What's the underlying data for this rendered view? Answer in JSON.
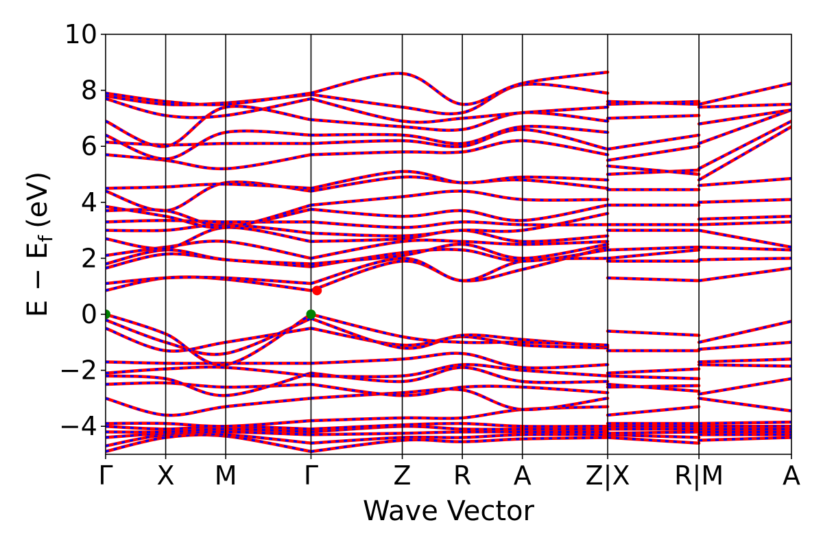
{
  "chart_data": {
    "type": "line",
    "xlabel": "Wave Vector",
    "ylabel_main": "E − E",
    "ylabel_sub": "f",
    "ylabel_unit": "(eV)",
    "ylim": [
      -5,
      10
    ],
    "yticks": [
      -4,
      -2,
      0,
      2,
      4,
      6,
      8,
      10
    ],
    "ytick_labels": [
      "−4",
      "−2",
      "0",
      "2",
      "4",
      "6",
      "8",
      "10"
    ],
    "kpath_labels": [
      "Γ",
      "X",
      "M",
      "Γ",
      "Z",
      "R",
      "A",
      "Z|X",
      "R|M",
      "A"
    ],
    "kpath_positions": [
      0,
      0.5,
      1,
      1.71,
      2.47,
      2.97,
      3.47,
      4.18,
      4.94,
      5.71
    ],
    "grid": false,
    "legend": "none",
    "colors": {
      "band_primary": "#ff0000",
      "band_secondary": "#0000ff",
      "vbm_marker": "#008000",
      "cbm_marker": "#ff0000",
      "kpath_line": "#000000"
    },
    "markers": [
      {
        "name": "vbm",
        "x": 0.0,
        "y": 0.0,
        "color": "#008000"
      },
      {
        "name": "vbm",
        "x": 1.71,
        "y": 0.0,
        "color": "#008000"
      },
      {
        "name": "cbm",
        "x": 1.76,
        "y": 0.85,
        "color": "#ff0000"
      }
    ],
    "segments": [
      {
        "x": [
          0,
          0.5,
          1,
          1.71
        ],
        "bands": [
          [
            -4.9,
            -4.4,
            -4.35,
            -4.9
          ],
          [
            -4.7,
            -4.3,
            -4.3,
            -4.6
          ],
          [
            -4.4,
            -4.25,
            -4.2,
            -4.3
          ],
          [
            -4.2,
            -4.2,
            -4.1,
            -4.2
          ],
          [
            -4.0,
            -4.1,
            -4.0,
            -4.1
          ],
          [
            -3.9,
            -3.9,
            -4.0,
            -3.8
          ],
          [
            -3.0,
            -3.6,
            -3.3,
            -3.0
          ],
          [
            -2.5,
            -2.45,
            -2.6,
            -2.5
          ],
          [
            -2.2,
            -2.3,
            -2.9,
            -2.1
          ],
          [
            -2.1,
            -1.95,
            -1.9,
            -2.2
          ],
          [
            -1.7,
            -1.75,
            -1.75,
            -1.75
          ],
          [
            -0.5,
            -1.3,
            -1.0,
            -0.5
          ],
          [
            -0.2,
            -1.0,
            -1.4,
            -0.15
          ],
          [
            0.0,
            -0.7,
            -1.8,
            0.0
          ],
          [
            0.85,
            1.3,
            1.25,
            0.85
          ],
          [
            1.1,
            1.3,
            1.3,
            1.1
          ],
          [
            1.65,
            2.15,
            1.95,
            1.7
          ],
          [
            1.8,
            2.3,
            1.95,
            1.8
          ],
          [
            2.1,
            2.4,
            2.6,
            2.0
          ],
          [
            2.7,
            2.35,
            3.1,
            2.6
          ],
          [
            3.0,
            3.0,
            3.2,
            2.9
          ],
          [
            3.3,
            3.35,
            3.3,
            3.3
          ],
          [
            3.7,
            3.7,
            3.15,
            3.75
          ],
          [
            3.85,
            3.5,
            3.1,
            3.9
          ],
          [
            4.4,
            3.7,
            4.7,
            4.4
          ],
          [
            4.5,
            4.55,
            4.65,
            4.5
          ],
          [
            5.7,
            5.5,
            5.2,
            5.7
          ],
          [
            6.15,
            6.05,
            6.1,
            6.1
          ],
          [
            6.4,
            5.55,
            6.5,
            6.4
          ],
          [
            6.9,
            6.0,
            7.4,
            6.95
          ],
          [
            7.7,
            7.1,
            7.1,
            7.7
          ],
          [
            7.8,
            7.5,
            7.55,
            7.85
          ],
          [
            7.9,
            7.6,
            7.5,
            7.9
          ]
        ]
      },
      {
        "x": [
          1.71,
          2.47,
          2.97,
          3.47,
          4.18
        ],
        "bands": [
          [
            -4.9,
            -4.5,
            -4.55,
            -4.45,
            -4.4
          ],
          [
            -4.6,
            -4.4,
            -4.4,
            -4.3,
            -4.3
          ],
          [
            -4.3,
            -4.25,
            -4.2,
            -4.2,
            -4.2
          ],
          [
            -4.2,
            -4.0,
            -4.1,
            -4.1,
            -4.1
          ],
          [
            -4.1,
            -3.95,
            -3.9,
            -4.0,
            -4.0
          ],
          [
            -3.8,
            -3.7,
            -3.7,
            -3.4,
            -3.3
          ],
          [
            -3.0,
            -2.8,
            -2.7,
            -3.4,
            -3.0
          ],
          [
            -2.5,
            -2.9,
            -2.6,
            -2.6,
            -2.8
          ],
          [
            -2.1,
            -2.4,
            -1.9,
            -2.4,
            -2.4
          ],
          [
            -2.2,
            -2.2,
            -1.8,
            -2.0,
            -2.2
          ],
          [
            -1.75,
            -1.6,
            -1.4,
            -1.9,
            -1.8
          ],
          [
            -0.5,
            -1.1,
            -0.8,
            -1.1,
            -1.2
          ],
          [
            -0.15,
            -1.2,
            -0.75,
            -0.9,
            -1.15
          ],
          [
            0.0,
            -0.8,
            -1.0,
            -1.0,
            -1.1
          ],
          [
            0.85,
            1.9,
            1.2,
            1.6,
            2.4
          ],
          [
            1.1,
            2.0,
            1.2,
            1.9,
            2.0
          ],
          [
            1.7,
            2.2,
            2.3,
            1.9,
            2.3
          ],
          [
            1.8,
            2.1,
            2.5,
            2.0,
            2.5
          ],
          [
            2.0,
            2.6,
            2.6,
            2.5,
            2.6
          ],
          [
            2.6,
            2.7,
            3.0,
            2.6,
            2.8
          ],
          [
            2.9,
            2.8,
            3.0,
            3.0,
            3.6
          ],
          [
            3.3,
            3.1,
            3.3,
            3.2,
            3.2
          ],
          [
            3.75,
            3.5,
            3.7,
            3.35,
            3.9
          ],
          [
            3.9,
            4.2,
            4.4,
            4.1,
            4.1
          ],
          [
            4.4,
            4.9,
            4.7,
            4.8,
            4.5
          ],
          [
            4.5,
            5.1,
            4.7,
            4.9,
            4.8
          ],
          [
            5.7,
            5.8,
            5.8,
            6.2,
            5.7
          ],
          [
            6.1,
            6.2,
            6.0,
            6.6,
            5.9
          ],
          [
            6.4,
            6.4,
            6.1,
            6.7,
            6.5
          ],
          [
            6.95,
            6.7,
            6.6,
            7.2,
            6.9
          ],
          [
            7.7,
            6.9,
            7.0,
            7.2,
            7.4
          ],
          [
            7.85,
            7.4,
            7.2,
            8.2,
            7.9
          ],
          [
            7.9,
            8.6,
            7.5,
            8.25,
            8.65
          ]
        ]
      },
      {
        "x": [
          4.18,
          4.94
        ],
        "bands": [
          [
            -4.4,
            -4.6
          ],
          [
            -4.3,
            -4.4
          ],
          [
            -4.25,
            -4.2
          ],
          [
            -4.1,
            -4.1
          ],
          [
            -4.0,
            -4.0
          ],
          [
            -3.9,
            -3.9
          ],
          [
            -3.6,
            -3.3
          ],
          [
            -2.6,
            -2.55
          ],
          [
            -2.5,
            -2.75
          ],
          [
            -2.2,
            -2.3
          ],
          [
            -2.1,
            -1.95
          ],
          [
            -1.3,
            -1.3
          ],
          [
            -0.6,
            -0.75
          ],
          [
            1.3,
            1.2
          ],
          [
            1.9,
            1.9
          ],
          [
            2.0,
            2.3
          ],
          [
            2.3,
            2.4
          ],
          [
            3.0,
            3.0
          ],
          [
            3.2,
            3.2
          ],
          [
            3.9,
            3.9
          ],
          [
            4.45,
            4.45
          ],
          [
            5.0,
            5.15
          ],
          [
            5.3,
            5.0
          ],
          [
            5.5,
            6.0
          ],
          [
            5.9,
            6.4
          ],
          [
            7.0,
            7.1
          ],
          [
            7.5,
            7.6
          ],
          [
            7.6,
            7.5
          ]
        ]
      },
      {
        "x": [
          4.94,
          5.71
        ],
        "bands": [
          [
            -4.5,
            -4.4
          ],
          [
            -4.3,
            -4.3
          ],
          [
            -4.2,
            -4.2
          ],
          [
            -4.1,
            -4.1
          ],
          [
            -4.0,
            -4.0
          ],
          [
            -3.9,
            -3.85
          ],
          [
            -3.0,
            -3.45
          ],
          [
            -2.85,
            -2.3
          ],
          [
            -1.8,
            -1.85
          ],
          [
            -1.7,
            -1.6
          ],
          [
            -1.25,
            -1.0
          ],
          [
            -1.0,
            -0.25
          ],
          [
            1.2,
            1.65
          ],
          [
            1.95,
            2.0
          ],
          [
            2.4,
            2.3
          ],
          [
            3.0,
            2.4
          ],
          [
            3.2,
            3.3
          ],
          [
            3.4,
            3.5
          ],
          [
            4.0,
            4.1
          ],
          [
            4.6,
            4.85
          ],
          [
            4.8,
            6.7
          ],
          [
            5.2,
            6.9
          ],
          [
            6.1,
            7.3
          ],
          [
            6.8,
            7.3
          ],
          [
            7.4,
            7.5
          ],
          [
            7.5,
            8.25
          ]
        ]
      }
    ]
  }
}
